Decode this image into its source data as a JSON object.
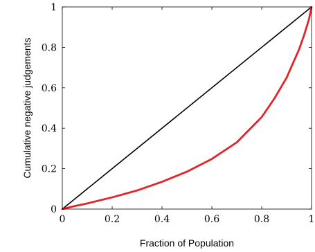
{
  "chart_data": {
    "type": "line",
    "title": "",
    "xlabel": "Fraction of Population",
    "ylabel": "Cumulative negative judgements",
    "xlim": [
      0,
      1
    ],
    "ylim": [
      0,
      1
    ],
    "grid": false,
    "x_ticks": [
      0,
      0.2,
      0.4,
      0.6,
      0.8,
      1
    ],
    "x_tick_labels": [
      "0",
      "0.2",
      "0.4",
      "0.6",
      "0.8",
      "1"
    ],
    "y_ticks": [
      0,
      0.2,
      0.4,
      0.6,
      0.8,
      1
    ],
    "y_tick_labels": [
      "0",
      "0.2",
      "0.4",
      "0.6",
      "0.8",
      "1"
    ],
    "series": [
      {
        "color": "#000000",
        "x": [
          0,
          1
        ],
        "y": [
          0,
          1
        ]
      },
      {
        "color": "#e3242b",
        "x": [
          0,
          0.05,
          0.1,
          0.2,
          0.3,
          0.4,
          0.5,
          0.6,
          0.7,
          0.8,
          0.85,
          0.9,
          0.95,
          0.97,
          0.99,
          1
        ],
        "y": [
          0,
          0.015,
          0.028,
          0.058,
          0.092,
          0.135,
          0.185,
          0.248,
          0.33,
          0.455,
          0.545,
          0.65,
          0.79,
          0.86,
          0.94,
          1
        ]
      }
    ]
  }
}
